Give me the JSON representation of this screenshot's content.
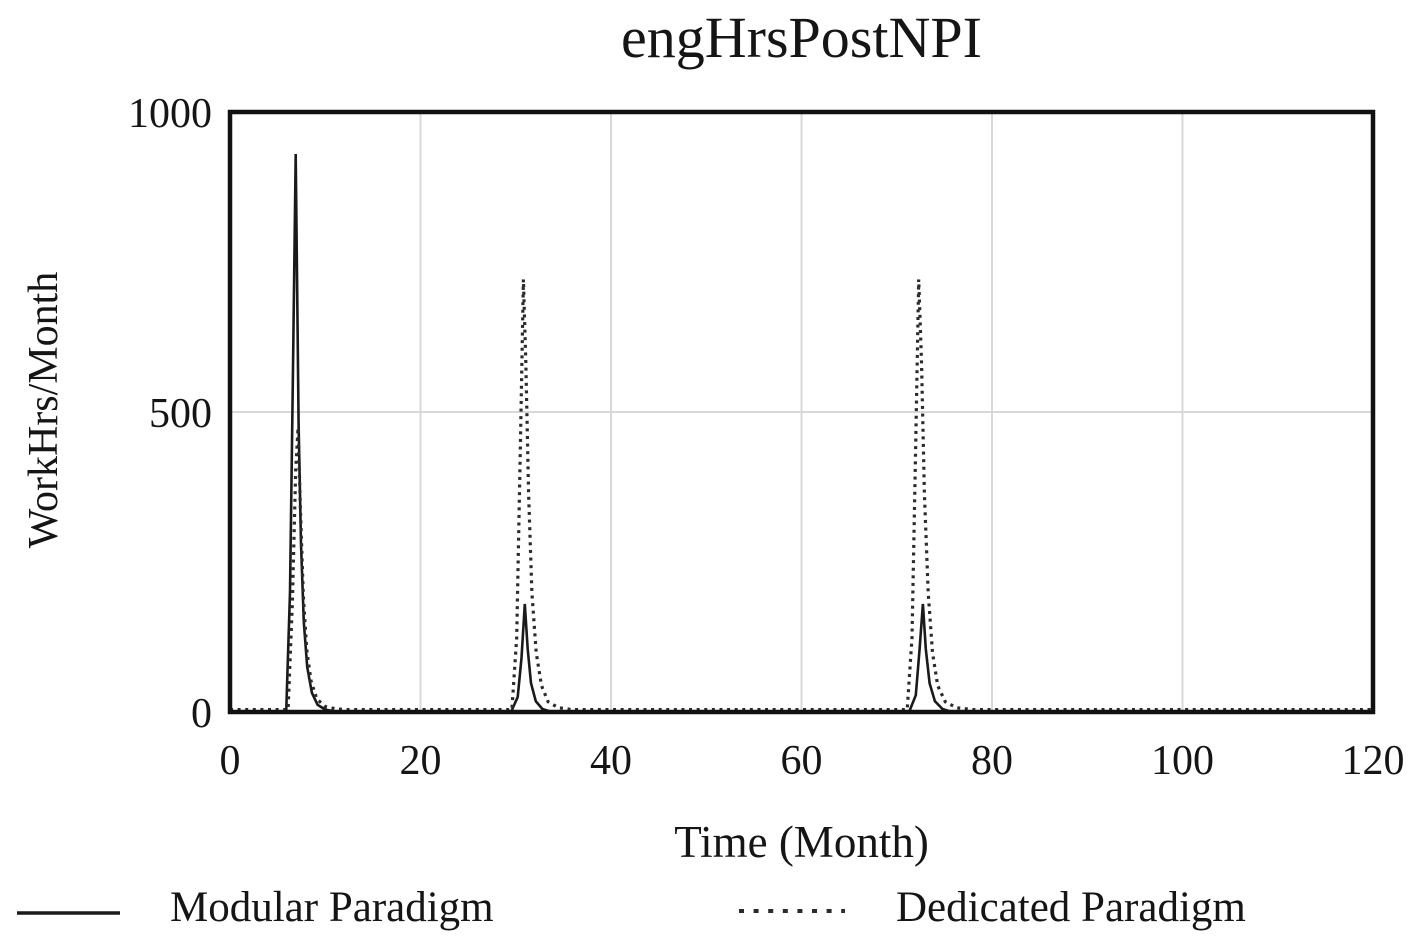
{
  "title": "engHrsPostNPI",
  "colors": {
    "background": "#ffffff",
    "frame": "#111111",
    "grid": "#d8d8d8",
    "text": "#151515",
    "solid_line": "#1a1a1a",
    "dotted_line": "#2b2b2b"
  },
  "chart_data": {
    "type": "line",
    "title": "engHrsPostNPI",
    "xlabel": "Time (Month)",
    "ylabel": "WorkHrs/Month",
    "xlim": [
      0,
      120
    ],
    "ylim": [
      0,
      1000
    ],
    "x_ticks": [
      0,
      20,
      40,
      60,
      80,
      100,
      120
    ],
    "y_ticks": [
      0,
      500,
      1000
    ],
    "grid": true,
    "legend_position": "bottom",
    "series": [
      {
        "name": "Modular Paradigm",
        "style": "solid",
        "color": "#1a1a1a",
        "points": [
          [
            0,
            0
          ],
          [
            5.9,
            0
          ],
          [
            6.3,
            200
          ],
          [
            6.6,
            560
          ],
          [
            6.9,
            930
          ],
          [
            7.05,
            700
          ],
          [
            7.2,
            480
          ],
          [
            7.45,
            280
          ],
          [
            7.75,
            150
          ],
          [
            8.1,
            75
          ],
          [
            8.6,
            32
          ],
          [
            9.2,
            12
          ],
          [
            10,
            4
          ],
          [
            11,
            1
          ],
          [
            12,
            0
          ],
          [
            29.5,
            0
          ],
          [
            30.2,
            25
          ],
          [
            30.6,
            90
          ],
          [
            30.95,
            180
          ],
          [
            31.25,
            105
          ],
          [
            31.6,
            48
          ],
          [
            32.1,
            18
          ],
          [
            32.8,
            5
          ],
          [
            33.8,
            0
          ],
          [
            71.3,
            0
          ],
          [
            72.0,
            28
          ],
          [
            72.4,
            105
          ],
          [
            72.75,
            180
          ],
          [
            73.05,
            105
          ],
          [
            73.45,
            48
          ],
          [
            74.0,
            18
          ],
          [
            74.8,
            5
          ],
          [
            75.8,
            0
          ],
          [
            120,
            0
          ]
        ]
      },
      {
        "name": "Dedicated Paradigm",
        "style": "dotted",
        "color": "#2b2b2b",
        "points": [
          [
            0,
            0
          ],
          [
            6.1,
            0
          ],
          [
            6.55,
            180
          ],
          [
            6.9,
            400
          ],
          [
            7.15,
            470
          ],
          [
            7.4,
            330
          ],
          [
            7.7,
            190
          ],
          [
            8.05,
            100
          ],
          [
            8.5,
            48
          ],
          [
            9.1,
            18
          ],
          [
            10,
            5
          ],
          [
            11.2,
            1
          ],
          [
            12.5,
            0
          ],
          [
            29.6,
            0
          ],
          [
            30.1,
            120
          ],
          [
            30.5,
            450
          ],
          [
            30.8,
            717
          ],
          [
            31.05,
            580
          ],
          [
            31.35,
            360
          ],
          [
            31.7,
            195
          ],
          [
            32.15,
            95
          ],
          [
            32.7,
            40
          ],
          [
            33.4,
            13
          ],
          [
            34.5,
            3
          ],
          [
            36,
            0
          ],
          [
            71.1,
            0
          ],
          [
            71.6,
            120
          ],
          [
            72.0,
            450
          ],
          [
            72.3,
            717
          ],
          [
            72.6,
            580
          ],
          [
            72.9,
            360
          ],
          [
            73.3,
            195
          ],
          [
            73.75,
            95
          ],
          [
            74.3,
            40
          ],
          [
            75.1,
            13
          ],
          [
            76.3,
            3
          ],
          [
            78,
            0
          ],
          [
            120,
            0
          ]
        ]
      }
    ]
  }
}
